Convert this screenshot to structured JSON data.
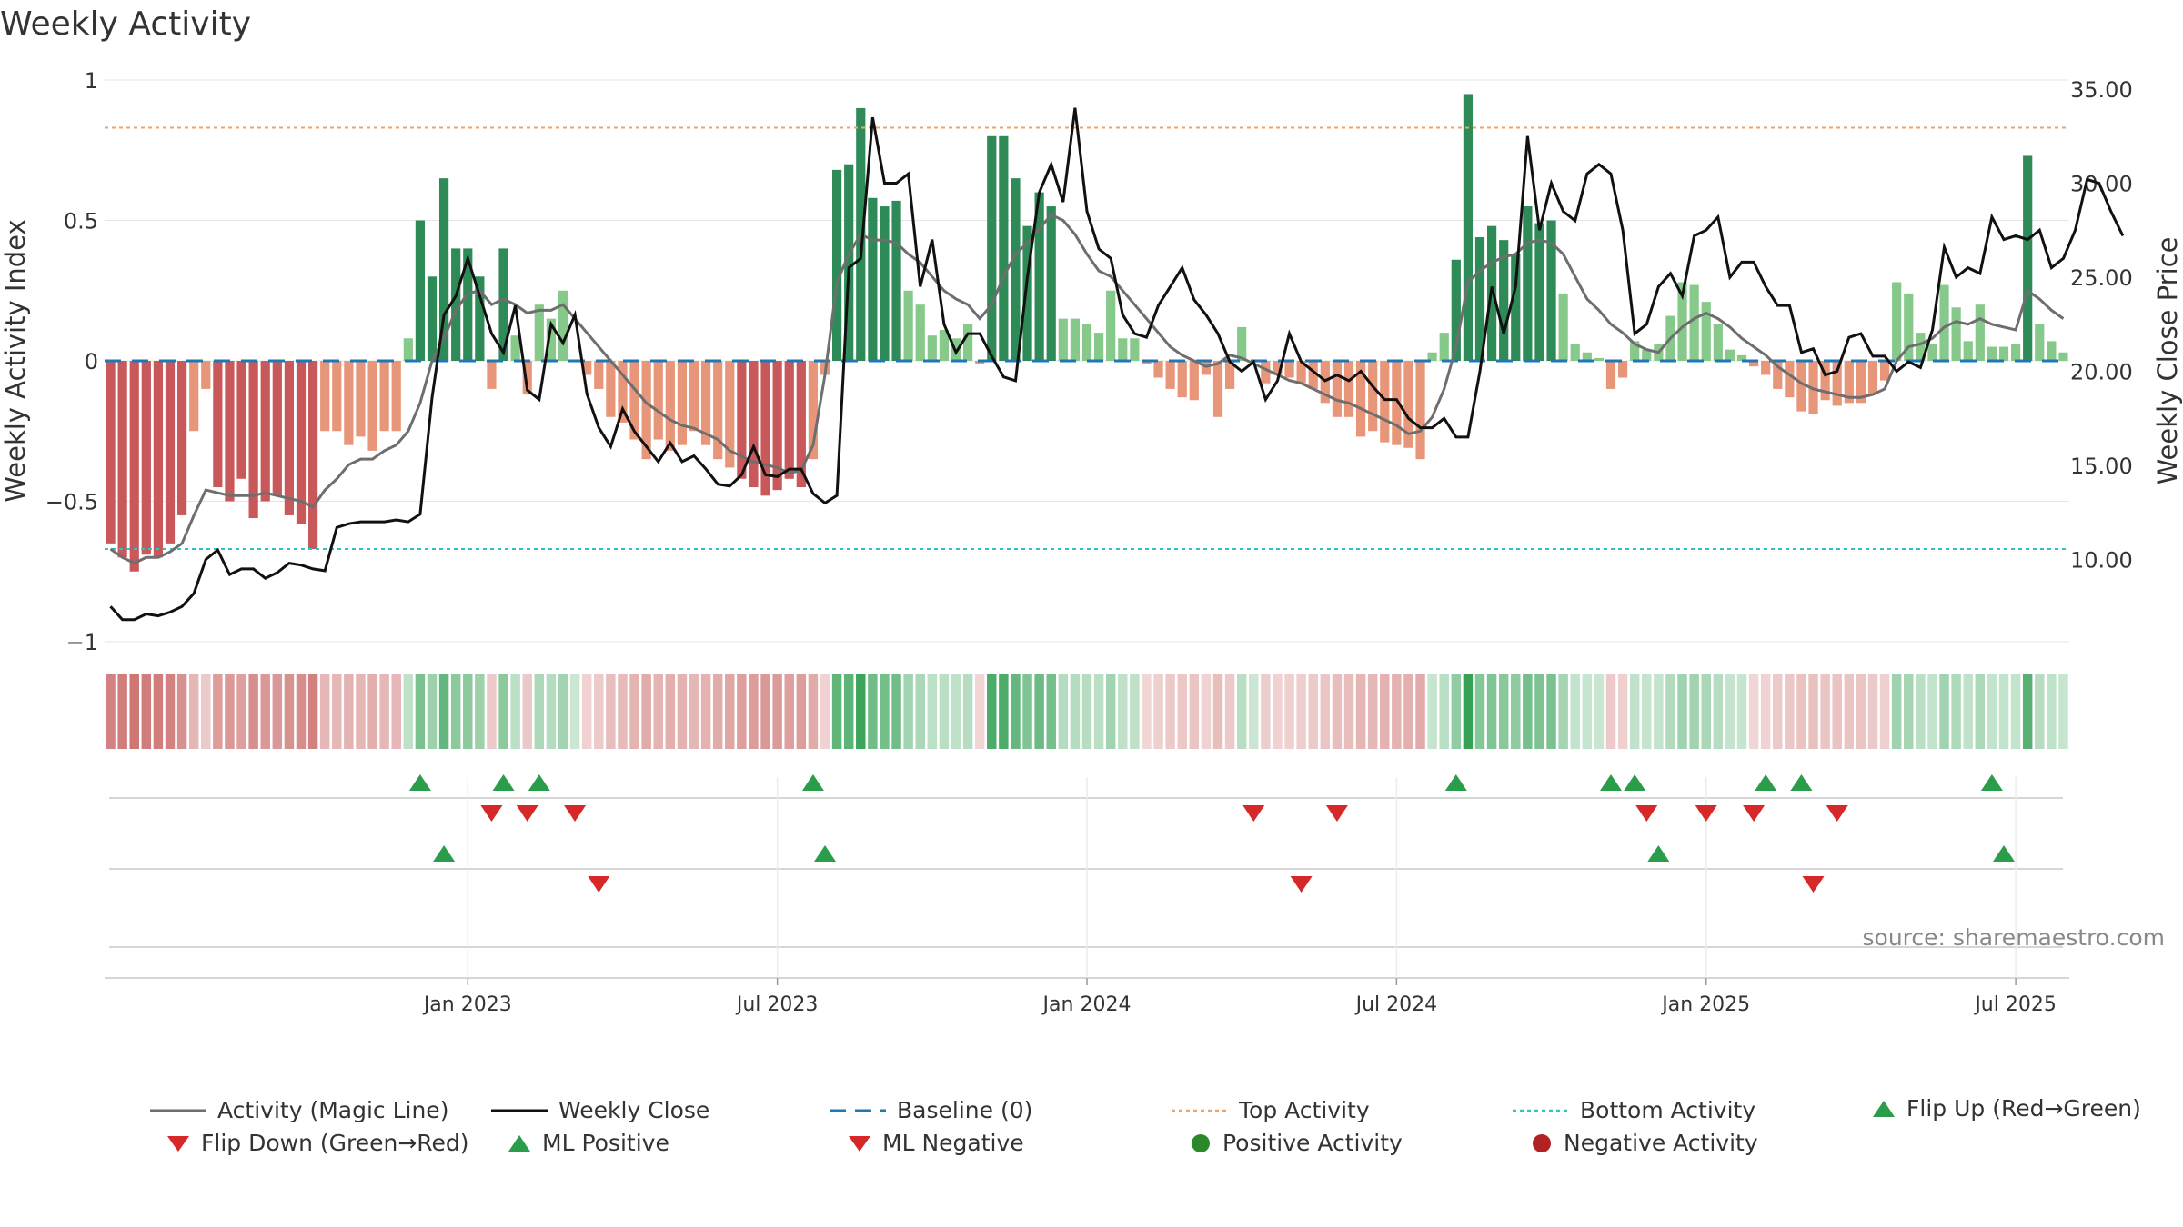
{
  "title": "Weekly Activity",
  "source": "source: sharemaestro.com",
  "chart_data": {
    "type": "bar",
    "title": "Weekly Activity",
    "ylabel": "Weekly Activity Index",
    "y2label": "Weekly Close Price",
    "ylim": [
      -1,
      1
    ],
    "y2lim": [
      4,
      36
    ],
    "yticks": [
      {
        "v": 1,
        "label": "1"
      },
      {
        "v": 0.5,
        "label": "0.5"
      },
      {
        "v": 0,
        "label": "0"
      },
      {
        "v": -0.5,
        "label": "−0.5"
      },
      {
        "v": -1,
        "label": "−1"
      }
    ],
    "y2ticks": [
      {
        "v": 35,
        "label": "35.00"
      },
      {
        "v": 30,
        "label": "30.00"
      },
      {
        "v": 25,
        "label": "25.00"
      },
      {
        "v": 20,
        "label": "20.00"
      },
      {
        "v": 15,
        "label": "15.00"
      },
      {
        "v": 10,
        "label": "10.00"
      }
    ],
    "xticks": [
      {
        "week": 30,
        "label": "Jan 2023"
      },
      {
        "week": 56,
        "label": "Jul 2023"
      },
      {
        "week": 82,
        "label": "Jan 2024"
      },
      {
        "week": 108,
        "label": "Jul 2024"
      },
      {
        "week": 134,
        "label": "Jan 2025"
      },
      {
        "week": 160,
        "label": "Jul 2025"
      }
    ],
    "top_activity": 0.83,
    "bottom_activity": -0.67,
    "colors": {
      "strong_neg": "#c9585a",
      "weak_neg": "#e8967a",
      "strong_pos": "#2e8b57",
      "weak_pos": "#86c98a",
      "close": "#111111",
      "magic": "#6e6e6e",
      "baseline": "#1f77b4",
      "top": "#f4a261",
      "bottom": "#2ec4c4",
      "up": "#2a9d4a",
      "down": "#d62828"
    },
    "activity": [
      -0.65,
      -0.7,
      -0.75,
      -0.69,
      -0.7,
      -0.65,
      -0.55,
      -0.25,
      -0.1,
      -0.45,
      -0.5,
      -0.42,
      -0.56,
      -0.5,
      -0.48,
      -0.55,
      -0.58,
      -0.67,
      -0.25,
      -0.25,
      -0.3,
      -0.27,
      -0.32,
      -0.25,
      -0.25,
      0.08,
      0.5,
      0.3,
      0.65,
      0.4,
      0.4,
      0.3,
      -0.1,
      0.4,
      0.09,
      -0.12,
      0.2,
      0.15,
      0.25,
      0,
      -0.05,
      -0.1,
      -0.2,
      -0.22,
      -0.28,
      -0.35,
      -0.28,
      -0.32,
      -0.3,
      -0.25,
      -0.3,
      -0.35,
      -0.38,
      -0.42,
      -0.45,
      -0.48,
      -0.46,
      -0.42,
      -0.45,
      -0.35,
      -0.05,
      0.68,
      0.7,
      0.9,
      0.58,
      0.55,
      0.57,
      0.25,
      0.2,
      0.09,
      0.11,
      0.08,
      0.13,
      -0.01,
      0.8,
      0.8,
      0.65,
      0.48,
      0.6,
      0.55,
      0.15,
      0.15,
      0.13,
      0.1,
      0.25,
      0.08,
      0.08,
      -0.01,
      -0.06,
      -0.1,
      -0.13,
      -0.14,
      -0.05,
      -0.2,
      -0.1,
      0.12,
      0,
      -0.08,
      -0.05,
      -0.06,
      -0.08,
      -0.1,
      -0.15,
      -0.2,
      -0.2,
      -0.27,
      -0.25,
      -0.29,
      -0.3,
      -0.31,
      -0.35,
      0.03,
      0.1,
      0.36,
      0.95,
      0.44,
      0.48,
      0.43,
      0.38,
      0.55,
      0.49,
      0.5,
      0.24,
      0.06,
      0.03,
      0.01,
      -0.1,
      -0.06,
      0.07,
      0.04,
      0.06,
      0.16,
      0.28,
      0.27,
      0.21,
      0.13,
      0.04,
      0.02,
      -0.02,
      -0.05,
      -0.1,
      -0.13,
      -0.18,
      -0.19,
      -0.14,
      -0.16,
      -0.15,
      -0.15,
      -0.12,
      -0.07,
      0.28,
      0.24,
      0.1,
      0.06,
      0.27,
      0.19,
      0.07,
      0.2,
      0.05,
      0.05,
      0.06,
      0.73,
      0.13,
      0.07,
      0.03
    ],
    "magic_line": [
      -0.67,
      -0.7,
      -0.72,
      -0.7,
      -0.7,
      -0.68,
      -0.65,
      -0.55,
      -0.46,
      -0.47,
      -0.48,
      -0.48,
      -0.48,
      -0.47,
      -0.48,
      -0.49,
      -0.5,
      -0.52,
      -0.46,
      -0.42,
      -0.37,
      -0.35,
      -0.35,
      -0.32,
      -0.3,
      -0.25,
      -0.15,
      0,
      0.08,
      0.18,
      0.24,
      0.25,
      0.2,
      0.22,
      0.2,
      0.17,
      0.18,
      0.18,
      0.2,
      0.15,
      0.1,
      0.05,
      0,
      -0.05,
      -0.1,
      -0.15,
      -0.18,
      -0.21,
      -0.23,
      -0.24,
      -0.26,
      -0.28,
      -0.32,
      -0.34,
      -0.36,
      -0.37,
      -0.38,
      -0.4,
      -0.39,
      -0.3,
      -0.05,
      0.28,
      0.38,
      0.45,
      0.43,
      0.43,
      0.42,
      0.38,
      0.35,
      0.3,
      0.25,
      0.22,
      0.2,
      0.15,
      0.2,
      0.3,
      0.38,
      0.42,
      0.47,
      0.52,
      0.5,
      0.45,
      0.38,
      0.32,
      0.3,
      0.25,
      0.2,
      0.15,
      0.1,
      0.05,
      0.02,
      0,
      -0.02,
      -0.01,
      0.02,
      0.01,
      -0.01,
      -0.03,
      -0.05,
      -0.07,
      -0.08,
      -0.1,
      -0.12,
      -0.14,
      -0.15,
      -0.17,
      -0.19,
      -0.21,
      -0.23,
      -0.26,
      -0.25,
      -0.2,
      -0.1,
      0.05,
      0.28,
      0.32,
      0.35,
      0.37,
      0.38,
      0.42,
      0.43,
      0.42,
      0.38,
      0.3,
      0.22,
      0.18,
      0.13,
      0.1,
      0.06,
      0.04,
      0.03,
      0.08,
      0.12,
      0.15,
      0.17,
      0.15,
      0.12,
      0.08,
      0.05,
      0.02,
      -0.02,
      -0.05,
      -0.08,
      -0.1,
      -0.11,
      -0.12,
      -0.13,
      -0.13,
      -0.12,
      -0.1,
      0,
      0.05,
      0.06,
      0.08,
      0.12,
      0.14,
      0.13,
      0.15,
      0.13,
      0.12,
      0.11,
      0.25,
      0.22,
      0.18,
      0.15
    ],
    "weekly_close": [
      7.5,
      6.8,
      6.8,
      7.1,
      7,
      7.2,
      7.5,
      8.2,
      10,
      10.5,
      9.2,
      9.5,
      9.5,
      9,
      9.3,
      9.8,
      9.7,
      9.5,
      9.4,
      11.7,
      11.9,
      12,
      12,
      12,
      12.1,
      12,
      12.4,
      18.6,
      23,
      24,
      26,
      24,
      22,
      21,
      23.5,
      19,
      18.5,
      22.5,
      21.5,
      23,
      18.8,
      17,
      16,
      18,
      16.8,
      16,
      15.2,
      16.2,
      15.2,
      15.5,
      14.8,
      14,
      13.9,
      14.5,
      16,
      14.5,
      14.4,
      14.8,
      14.8,
      13.5,
      13,
      13.4,
      25.5,
      26,
      33.5,
      30,
      30,
      30.5,
      24.5,
      27,
      22.5,
      21,
      22,
      22,
      20.8,
      19.7,
      19.5,
      25,
      29.5,
      31,
      29,
      34,
      28.5,
      26.5,
      26,
      23,
      22,
      21.8,
      23.5,
      24.5,
      25.5,
      23.8,
      23,
      22,
      20.5,
      20,
      20.5,
      18.5,
      19.5,
      22,
      20.5,
      20,
      19.5,
      19.8,
      19.5,
      20,
      19.2,
      18.5,
      18.5,
      17.5,
      17,
      17,
      17.5,
      16.5,
      16.5,
      20,
      24.5,
      22,
      24.5,
      32.5,
      27.5,
      30,
      28.5,
      28,
      30.5,
      31,
      30.5,
      27.5,
      22,
      22.5,
      24.5,
      25.2,
      24,
      27.2,
      27.5,
      28.2,
      25,
      25.8,
      25.8,
      24.5,
      23.5,
      23.5,
      21,
      21.2,
      19.8,
      20,
      21.8,
      22,
      20.8,
      20.8,
      20,
      20.5,
      20.2,
      22.2,
      26.6,
      25,
      25.5,
      25.2,
      28.2,
      27,
      27.2,
      27,
      27.5,
      25.5,
      26,
      27.5,
      30.2,
      30,
      28.5,
      27.2
    ],
    "flip_up": [
      26,
      33,
      36,
      59,
      113,
      126,
      128,
      139,
      142,
      158
    ],
    "flip_down": [
      32,
      35,
      39,
      96,
      103,
      129,
      134,
      138,
      145
    ],
    "ml_positive": [
      28,
      60,
      130,
      159
    ],
    "ml_negative": [
      41,
      100,
      143
    ],
    "legend": {
      "magic": "Activity (Magic Line)",
      "close": "Weekly Close",
      "baseline": "Baseline (0)",
      "top": "Top Activity",
      "bottom": "Bottom Activity",
      "flip_up": "Flip Up (Red→Green)",
      "flip_down": "Flip Down (Green→Red)",
      "ml_pos": "ML Positive",
      "ml_neg": "ML Negative",
      "pos_act": "Positive Activity",
      "neg_act": "Negative Activity"
    }
  }
}
